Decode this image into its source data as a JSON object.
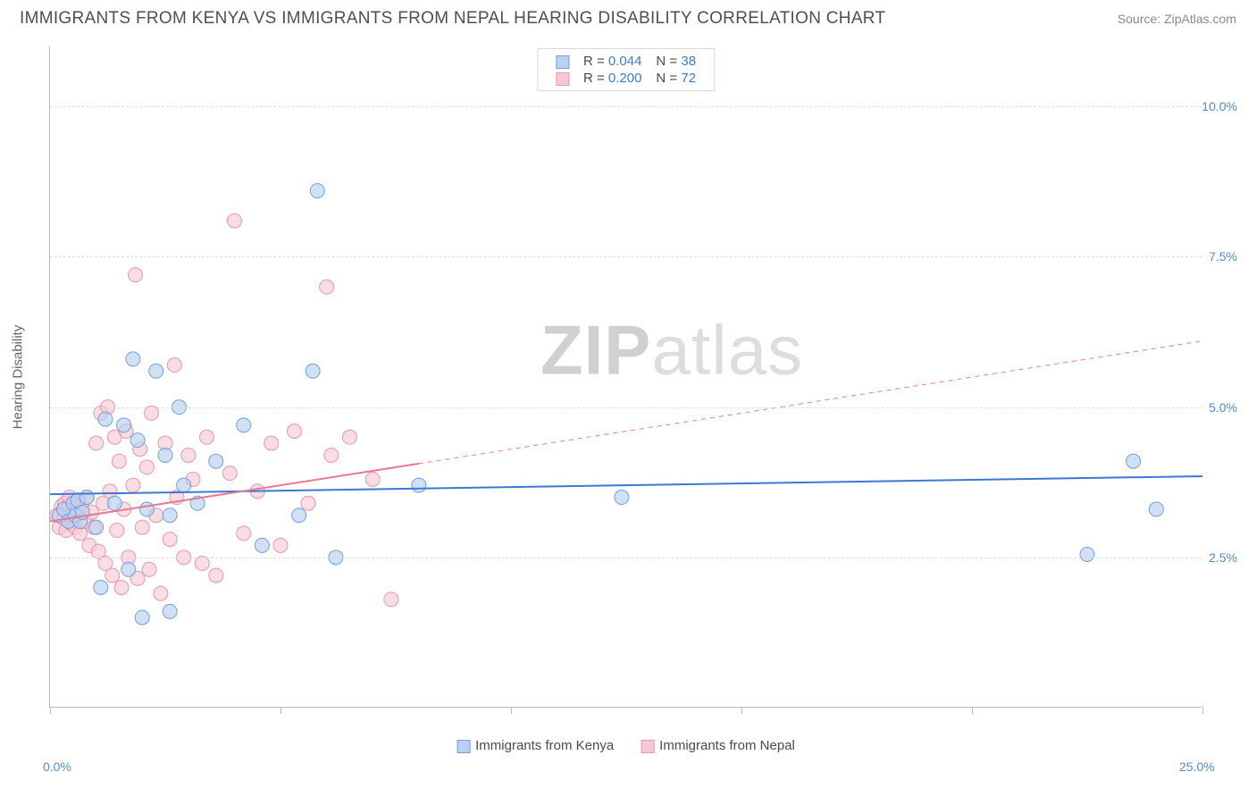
{
  "title": "IMMIGRANTS FROM KENYA VS IMMIGRANTS FROM NEPAL HEARING DISABILITY CORRELATION CHART",
  "source": "Source: ZipAtlas.com",
  "watermark": {
    "part1": "ZIP",
    "part2": "atlas"
  },
  "ylabel": "Hearing Disability",
  "chart": {
    "type": "scatter-with-trendlines",
    "background_color": "#ffffff",
    "grid_color": "#dcdcdc",
    "axis_color": "#b8b8b8",
    "tick_label_color": "#5089d8",
    "tick_fontsize": 14,
    "xlim": [
      0,
      25
    ],
    "ylim": [
      0,
      11
    ],
    "y_gridlines": [
      2.5,
      5.0,
      7.5,
      10.0
    ],
    "y_tick_labels": [
      "2.5%",
      "5.0%",
      "7.5%",
      "10.0%"
    ],
    "x_ticks": [
      0,
      5,
      10,
      15,
      20,
      25
    ],
    "x_tick_labels": {
      "0": "0.0%",
      "25": "25.0%"
    },
    "marker_radius": 8,
    "marker_opacity": 0.65,
    "series": [
      {
        "name": "Immigrants from Kenya",
        "color_fill": "#b9d1ef",
        "color_stroke": "#6fa0de",
        "trend_color": "#3b78d8",
        "trend_width": 2,
        "R": "0.044",
        "N": "38",
        "trend": {
          "x1": 0,
          "y1": 3.55,
          "x2": 25,
          "y2": 3.85
        },
        "points": [
          [
            0.2,
            3.2
          ],
          [
            0.3,
            3.3
          ],
          [
            0.4,
            3.1
          ],
          [
            0.5,
            3.4
          ],
          [
            0.55,
            3.2
          ],
          [
            0.6,
            3.45
          ],
          [
            0.65,
            3.1
          ],
          [
            0.7,
            3.25
          ],
          [
            0.8,
            3.5
          ],
          [
            1.0,
            3.0
          ],
          [
            1.1,
            2.0
          ],
          [
            1.2,
            4.8
          ],
          [
            1.4,
            3.4
          ],
          [
            1.6,
            4.7
          ],
          [
            1.7,
            2.3
          ],
          [
            1.8,
            5.8
          ],
          [
            1.9,
            4.45
          ],
          [
            2.1,
            3.3
          ],
          [
            2.0,
            1.5
          ],
          [
            2.3,
            5.6
          ],
          [
            2.5,
            4.2
          ],
          [
            2.6,
            3.2
          ],
          [
            2.6,
            1.6
          ],
          [
            2.8,
            5.0
          ],
          [
            2.9,
            3.7
          ],
          [
            3.2,
            3.4
          ],
          [
            3.6,
            4.1
          ],
          [
            4.2,
            4.7
          ],
          [
            4.6,
            2.7
          ],
          [
            5.4,
            3.2
          ],
          [
            5.7,
            5.6
          ],
          [
            5.8,
            8.6
          ],
          [
            6.2,
            2.5
          ],
          [
            8.0,
            3.7
          ],
          [
            12.4,
            3.5
          ],
          [
            22.5,
            2.55
          ],
          [
            23.5,
            4.1
          ],
          [
            24.0,
            3.3
          ]
        ]
      },
      {
        "name": "Immigrants from Nepal",
        "color_fill": "#f8c9d4",
        "color_stroke": "#ea96ab",
        "trend_color": "#e77a92",
        "trend_width": 2,
        "R": "0.200",
        "N": "72",
        "trend": {
          "x1": 0,
          "y1": 3.1,
          "x2": 25,
          "y2": 6.1
        },
        "trend_solid_until_x": 8.0,
        "points": [
          [
            0.15,
            3.2
          ],
          [
            0.2,
            3.0
          ],
          [
            0.25,
            3.35
          ],
          [
            0.3,
            3.15
          ],
          [
            0.32,
            3.4
          ],
          [
            0.35,
            2.95
          ],
          [
            0.38,
            3.3
          ],
          [
            0.4,
            3.1
          ],
          [
            0.42,
            3.5
          ],
          [
            0.45,
            3.2
          ],
          [
            0.48,
            3.05
          ],
          [
            0.5,
            3.4
          ],
          [
            0.52,
            3.15
          ],
          [
            0.55,
            3.0
          ],
          [
            0.58,
            3.35
          ],
          [
            0.6,
            3.2
          ],
          [
            0.62,
            3.45
          ],
          [
            0.65,
            2.9
          ],
          [
            0.7,
            3.3
          ],
          [
            0.75,
            3.1
          ],
          [
            0.8,
            3.5
          ],
          [
            0.85,
            2.7
          ],
          [
            0.9,
            3.25
          ],
          [
            0.95,
            3.0
          ],
          [
            1.0,
            4.4
          ],
          [
            1.05,
            2.6
          ],
          [
            1.1,
            4.9
          ],
          [
            1.15,
            3.4
          ],
          [
            1.2,
            2.4
          ],
          [
            1.25,
            5.0
          ],
          [
            1.3,
            3.6
          ],
          [
            1.35,
            2.2
          ],
          [
            1.4,
            4.5
          ],
          [
            1.45,
            2.95
          ],
          [
            1.5,
            4.1
          ],
          [
            1.55,
            2.0
          ],
          [
            1.6,
            3.3
          ],
          [
            1.65,
            4.6
          ],
          [
            1.7,
            2.5
          ],
          [
            1.8,
            3.7
          ],
          [
            1.85,
            7.2
          ],
          [
            1.9,
            2.15
          ],
          [
            1.95,
            4.3
          ],
          [
            2.0,
            3.0
          ],
          [
            2.1,
            4.0
          ],
          [
            2.15,
            2.3
          ],
          [
            2.2,
            4.9
          ],
          [
            2.3,
            3.2
          ],
          [
            2.4,
            1.9
          ],
          [
            2.5,
            4.4
          ],
          [
            2.6,
            2.8
          ],
          [
            2.7,
            5.7
          ],
          [
            2.75,
            3.5
          ],
          [
            2.9,
            2.5
          ],
          [
            3.0,
            4.2
          ],
          [
            3.1,
            3.8
          ],
          [
            3.3,
            2.4
          ],
          [
            3.4,
            4.5
          ],
          [
            3.6,
            2.2
          ],
          [
            3.9,
            3.9
          ],
          [
            4.0,
            8.1
          ],
          [
            4.2,
            2.9
          ],
          [
            4.5,
            3.6
          ],
          [
            4.8,
            4.4
          ],
          [
            5.0,
            2.7
          ],
          [
            5.3,
            4.6
          ],
          [
            5.6,
            3.4
          ],
          [
            6.0,
            7.0
          ],
          [
            6.1,
            4.2
          ],
          [
            6.5,
            4.5
          ],
          [
            7.0,
            3.8
          ],
          [
            7.4,
            1.8
          ]
        ]
      }
    ]
  },
  "legend_top": {
    "rows": [
      {
        "swatch_fill": "#b9d1ef",
        "swatch_stroke": "#6fa0de",
        "r": "0.044",
        "n": "38"
      },
      {
        "swatch_fill": "#f8c9d4",
        "swatch_stroke": "#ea96ab",
        "r": "0.200",
        "n": "72"
      }
    ],
    "r_label": "R =",
    "n_label": "N ="
  },
  "legend_bottom": {
    "items": [
      {
        "swatch_fill": "#b9d1ef",
        "swatch_stroke": "#6fa0de",
        "label": "Immigrants from Kenya"
      },
      {
        "swatch_fill": "#f8c9d4",
        "swatch_stroke": "#ea96ab",
        "label": "Immigrants from Nepal"
      }
    ]
  }
}
